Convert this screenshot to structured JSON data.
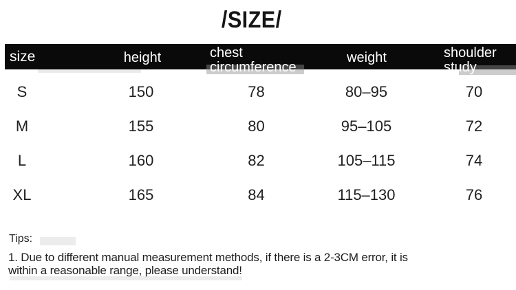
{
  "title": "/SIZE/",
  "table": {
    "header": {
      "size": "size",
      "height": "height",
      "chest_line1": "chest",
      "chest_line2": "circumference",
      "weight": "weight",
      "shoulder_line1": "shoulder",
      "shoulder_line2": "study"
    },
    "rows": [
      {
        "size": "S",
        "height": "150",
        "chest": "78",
        "weight": "80–95",
        "shoulder": "70"
      },
      {
        "size": "M",
        "height": "155",
        "chest": "80",
        "weight": "95–105",
        "shoulder": "72"
      },
      {
        "size": "L",
        "height": "160",
        "chest": "82",
        "weight": "105–115",
        "shoulder": "74"
      },
      {
        "size": "XL",
        "height": "165",
        "chest": "84",
        "weight": "115–130",
        "shoulder": "76"
      }
    ]
  },
  "tips": {
    "label": "Tips:",
    "line1": "1. Due to different manual measurement methods, if there is a 2-3CM error, it is",
    "line2": "within a reasonable range, please understand!"
  },
  "colors": {
    "header_bg": "#0a0a0a",
    "header_text": "#ffffff",
    "body_text": "#1f1f1f",
    "background": "#ffffff"
  }
}
